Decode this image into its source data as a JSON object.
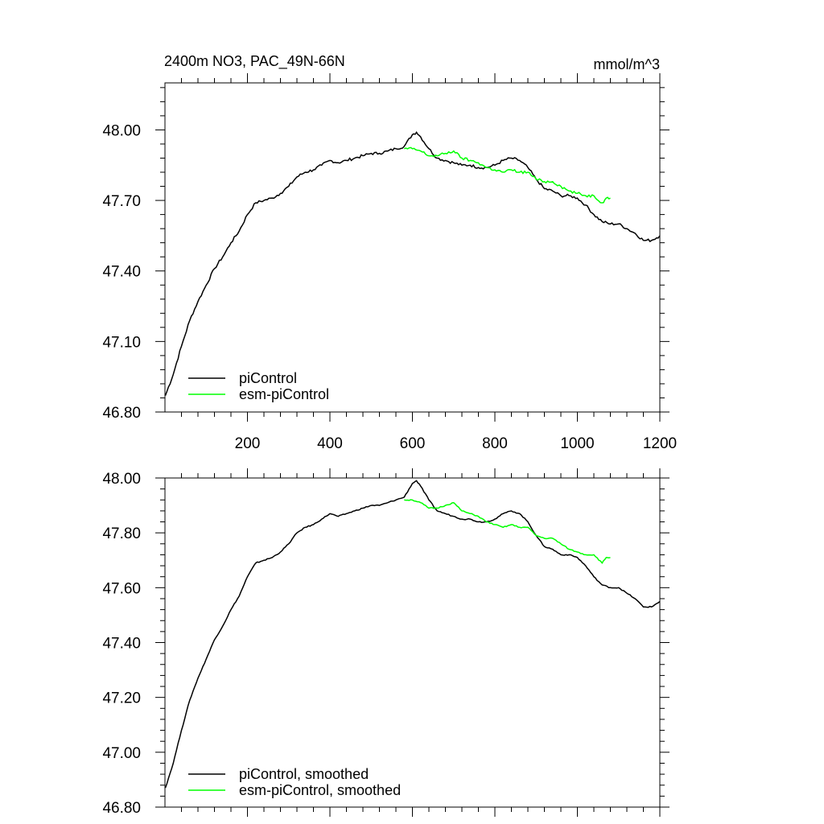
{
  "chart_data": [
    {
      "type": "line",
      "title_left": "2400m NO3, PAC_49N-66N",
      "title_right": "mmol/m^3",
      "xlim": [
        0,
        1200
      ],
      "ylim": [
        46.8,
        48.2
      ],
      "xticks": [
        200,
        400,
        600,
        800,
        1000,
        1200
      ],
      "xtick_labels": [
        "200",
        "400",
        "600",
        "800",
        "1000",
        "1200"
      ],
      "yticks": [
        46.8,
        47.1,
        47.4,
        47.7,
        48.0
      ],
      "ytick_labels": [
        "46.80",
        "47.10",
        "47.40",
        "47.70",
        "48.00"
      ],
      "legend_position": "bottom-left",
      "series": [
        {
          "name": "piControl",
          "color": "#000000",
          "x": [
            1,
            20,
            40,
            60,
            80,
            100,
            120,
            140,
            160,
            180,
            200,
            220,
            240,
            260,
            280,
            300,
            320,
            340,
            360,
            380,
            400,
            420,
            440,
            460,
            480,
            500,
            520,
            540,
            560,
            580,
            600,
            610,
            620,
            640,
            660,
            680,
            700,
            720,
            740,
            760,
            780,
            800,
            820,
            840,
            860,
            880,
            900,
            920,
            940,
            960,
            980,
            1000,
            1020,
            1040,
            1060,
            1080,
            1100,
            1120,
            1140,
            1160,
            1180,
            1200
          ],
          "values": [
            46.87,
            46.96,
            47.08,
            47.19,
            47.27,
            47.34,
            47.41,
            47.46,
            47.52,
            47.57,
            47.64,
            47.69,
            47.7,
            47.71,
            47.73,
            47.76,
            47.8,
            47.82,
            47.83,
            47.85,
            47.87,
            47.86,
            47.87,
            47.88,
            47.89,
            47.9,
            47.9,
            47.91,
            47.92,
            47.93,
            47.98,
            47.99,
            47.97,
            47.92,
            47.88,
            47.87,
            47.86,
            47.85,
            47.85,
            47.84,
            47.84,
            47.85,
            47.87,
            47.88,
            47.87,
            47.84,
            47.79,
            47.75,
            47.74,
            47.72,
            47.72,
            47.71,
            47.68,
            47.64,
            47.61,
            47.6,
            47.6,
            47.58,
            47.56,
            47.53,
            47.53,
            47.55
          ]
        },
        {
          "name": "esm-piControl",
          "color": "#00ff00",
          "x": [
            580,
            600,
            620,
            640,
            660,
            680,
            700,
            720,
            740,
            760,
            780,
            800,
            820,
            840,
            860,
            880,
            900,
            920,
            940,
            960,
            980,
            1000,
            1020,
            1040,
            1060,
            1070,
            1080
          ],
          "values": [
            47.92,
            47.92,
            47.91,
            47.89,
            47.89,
            47.9,
            47.91,
            47.88,
            47.87,
            47.86,
            47.84,
            47.83,
            47.82,
            47.83,
            47.82,
            47.82,
            47.79,
            47.78,
            47.78,
            47.76,
            47.74,
            47.73,
            47.72,
            47.72,
            47.69,
            47.71,
            47.71
          ]
        }
      ]
    },
    {
      "type": "line",
      "xlim": [
        0,
        1200
      ],
      "ylim": [
        46.8,
        48.0
      ],
      "xticks": [
        200,
        400,
        600,
        800,
        1000,
        1200
      ],
      "yticks": [
        46.8,
        47.0,
        47.2,
        47.4,
        47.6,
        47.8,
        48.0
      ],
      "ytick_labels": [
        "46.80",
        "47.00",
        "47.20",
        "47.40",
        "47.60",
        "47.80",
        "48.00"
      ],
      "legend_position": "bottom-left",
      "series": [
        {
          "name": "piControl, smoothed",
          "color": "#000000",
          "x": [
            1,
            20,
            40,
            60,
            80,
            100,
            120,
            140,
            160,
            180,
            200,
            220,
            240,
            260,
            280,
            300,
            320,
            340,
            360,
            380,
            400,
            420,
            440,
            460,
            480,
            500,
            520,
            540,
            560,
            580,
            600,
            610,
            620,
            640,
            660,
            680,
            700,
            720,
            740,
            760,
            780,
            800,
            820,
            840,
            860,
            880,
            900,
            920,
            940,
            960,
            980,
            1000,
            1020,
            1040,
            1060,
            1080,
            1100,
            1120,
            1140,
            1160,
            1180,
            1200
          ],
          "values": [
            46.87,
            46.96,
            47.08,
            47.19,
            47.27,
            47.34,
            47.41,
            47.46,
            47.52,
            47.57,
            47.64,
            47.69,
            47.7,
            47.71,
            47.73,
            47.76,
            47.8,
            47.82,
            47.83,
            47.85,
            47.87,
            47.86,
            47.87,
            47.88,
            47.89,
            47.9,
            47.9,
            47.91,
            47.92,
            47.93,
            47.98,
            47.99,
            47.97,
            47.92,
            47.88,
            47.87,
            47.86,
            47.85,
            47.85,
            47.84,
            47.84,
            47.85,
            47.87,
            47.88,
            47.87,
            47.84,
            47.79,
            47.75,
            47.74,
            47.72,
            47.72,
            47.71,
            47.68,
            47.64,
            47.61,
            47.6,
            47.6,
            47.58,
            47.56,
            47.53,
            47.53,
            47.55
          ]
        },
        {
          "name": "esm-piControl, smoothed",
          "color": "#00ff00",
          "x": [
            580,
            600,
            620,
            640,
            660,
            680,
            700,
            720,
            740,
            760,
            780,
            800,
            820,
            840,
            860,
            880,
            900,
            920,
            940,
            960,
            980,
            1000,
            1020,
            1040,
            1060,
            1070,
            1080
          ],
          "values": [
            47.92,
            47.92,
            47.91,
            47.89,
            47.89,
            47.9,
            47.91,
            47.88,
            47.87,
            47.86,
            47.84,
            47.83,
            47.82,
            47.83,
            47.82,
            47.82,
            47.79,
            47.78,
            47.78,
            47.76,
            47.74,
            47.73,
            47.72,
            47.72,
            47.69,
            47.71,
            47.71
          ]
        }
      ]
    }
  ]
}
